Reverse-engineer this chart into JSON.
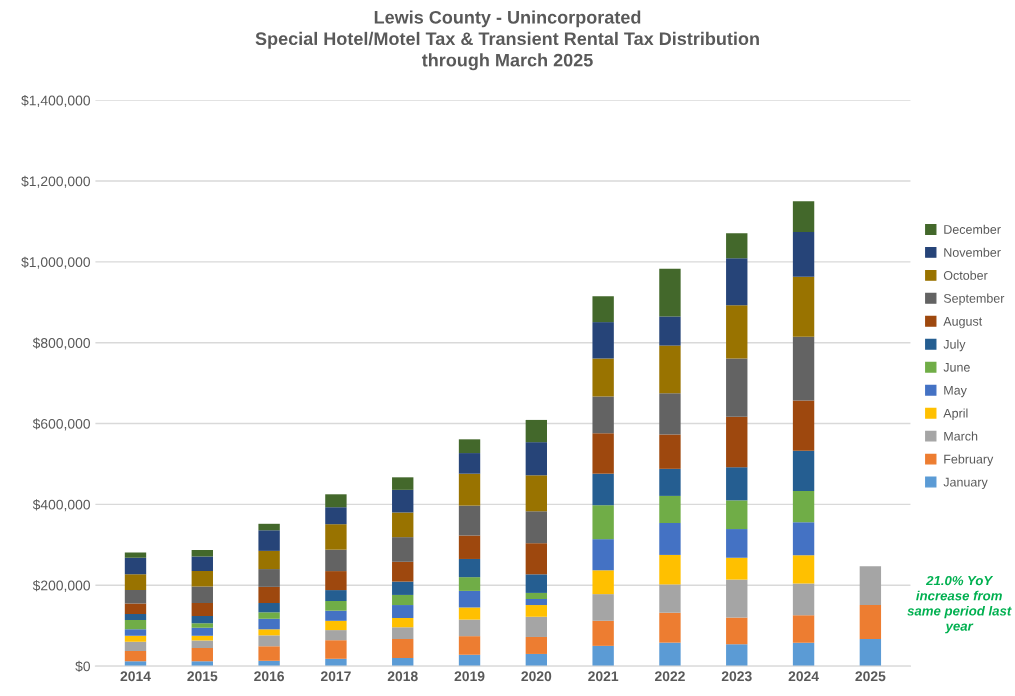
{
  "chart_data": {
    "type": "bar",
    "stacked": true,
    "title": "Lewis County - Unincorporated\nSpecial Hotel/Motel Tax & Transient Rental Tax Distribution\nthrough March 2025",
    "categories": [
      "2014",
      "2015",
      "2016",
      "2017",
      "2018",
      "2019",
      "2020",
      "2021",
      "2022",
      "2023",
      "2024",
      "2025"
    ],
    "series": [
      {
        "name": "January",
        "color": "#5b9bd5",
        "values": [
          12000,
          12000,
          13000,
          18000,
          20000,
          28000,
          30000,
          50000,
          58000,
          54000,
          58000,
          67000
        ]
      },
      {
        "name": "February",
        "color": "#ed7d31",
        "values": [
          25000,
          33000,
          36000,
          46000,
          47000,
          46000,
          42000,
          62000,
          74000,
          66000,
          68000,
          84000
        ]
      },
      {
        "name": "March",
        "color": "#a5a5a5",
        "values": [
          23000,
          18000,
          27000,
          25000,
          29000,
          41000,
          50000,
          66000,
          70000,
          94000,
          78000,
          96000
        ]
      },
      {
        "name": "April",
        "color": "#ffc000",
        "values": [
          15000,
          12000,
          15000,
          23000,
          23000,
          30000,
          29000,
          59000,
          73000,
          54000,
          70000,
          null
        ]
      },
      {
        "name": "May",
        "color": "#4472c4",
        "values": [
          16000,
          20000,
          26000,
          25000,
          32000,
          41000,
          15000,
          77000,
          79000,
          71000,
          82000,
          null
        ]
      },
      {
        "name": "June",
        "color": "#70ad47",
        "values": [
          23000,
          11000,
          16000,
          24000,
          25000,
          34000,
          15000,
          84000,
          67000,
          71000,
          77000,
          null
        ]
      },
      {
        "name": "July",
        "color": "#255e91",
        "values": [
          15000,
          18000,
          23000,
          27000,
          33000,
          45000,
          46000,
          78000,
          67000,
          82000,
          100000,
          null
        ]
      },
      {
        "name": "August",
        "color": "#9e480e",
        "values": [
          26000,
          32000,
          40000,
          47000,
          49000,
          58000,
          77000,
          100000,
          85000,
          125000,
          124000,
          null
        ]
      },
      {
        "name": "September",
        "color": "#636363",
        "values": [
          33000,
          41000,
          44000,
          53000,
          61000,
          74000,
          79000,
          91000,
          102000,
          144000,
          158000,
          null
        ]
      },
      {
        "name": "October",
        "color": "#997300",
        "values": [
          39000,
          38000,
          45000,
          63000,
          61000,
          79000,
          89000,
          94000,
          118000,
          132000,
          148000,
          null
        ]
      },
      {
        "name": "November",
        "color": "#264478",
        "values": [
          41000,
          36000,
          51000,
          42000,
          56000,
          51000,
          82000,
          90000,
          72000,
          116000,
          111000,
          null
        ]
      },
      {
        "name": "December",
        "color": "#43682b",
        "values": [
          13000,
          16000,
          16000,
          32000,
          31000,
          34000,
          55000,
          64000,
          118000,
          62000,
          76000,
          null
        ]
      }
    ],
    "ylim": [
      0,
      1400000
    ],
    "yticks": [
      {
        "value": 0,
        "label": "$0"
      },
      {
        "value": 200000,
        "label": "$200,000"
      },
      {
        "value": 400000,
        "label": "$400,000"
      },
      {
        "value": 600000,
        "label": "$600,000"
      },
      {
        "value": 800000,
        "label": "$800,000"
      },
      {
        "value": 1000000,
        "label": "$1,000,000"
      },
      {
        "value": 1200000,
        "label": "$1,200,000"
      },
      {
        "value": 1400000,
        "label": "$1,400,000"
      }
    ],
    "grid": "y",
    "legend": "right",
    "annotations": [
      "21.0% YoY\nincrease from\nsame period last\nyear"
    ]
  }
}
